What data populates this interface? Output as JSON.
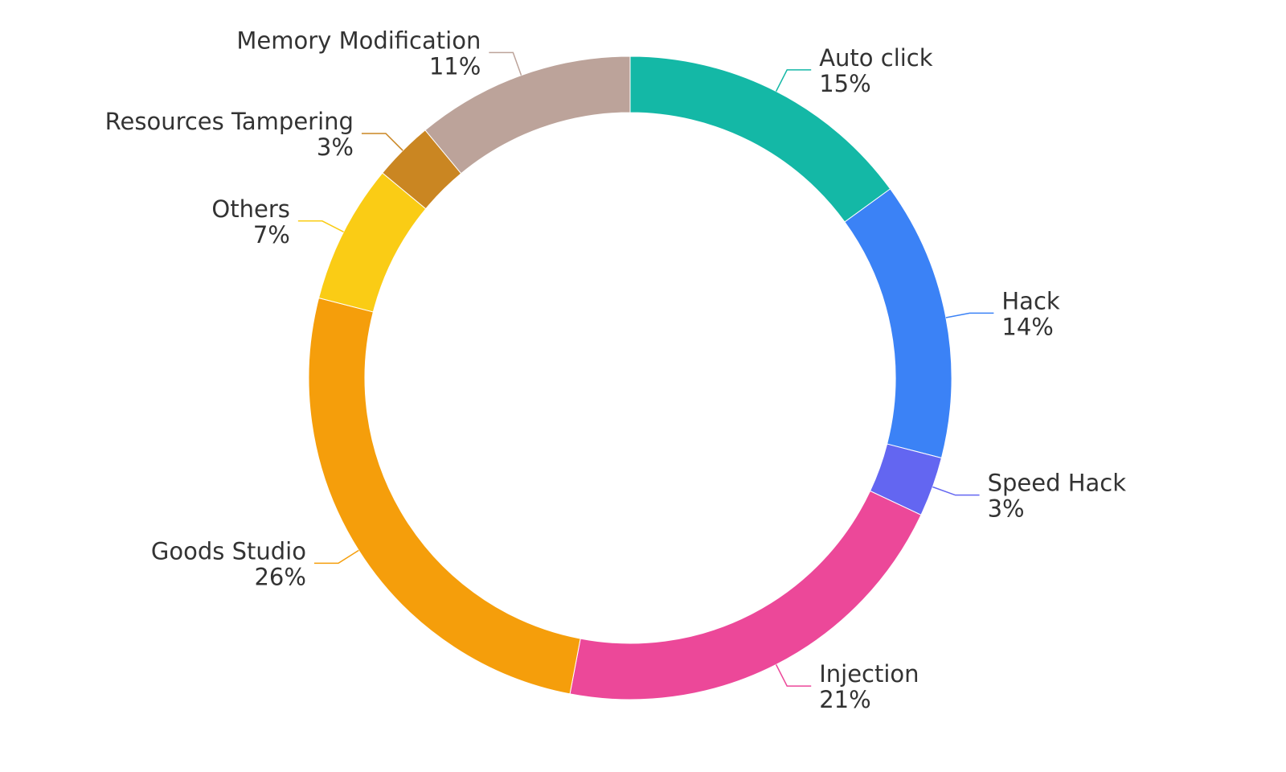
{
  "chart_data": {
    "type": "pie",
    "variant": "donut",
    "start": "top",
    "direction": "clockwise",
    "legend": "none",
    "slices": [
      {
        "name": "Auto click",
        "value": 15,
        "label": "15%",
        "color": "#14b8a6"
      },
      {
        "name": "Hack",
        "value": 14,
        "label": "14%",
        "color": "#3b82f6"
      },
      {
        "name": "Speed Hack",
        "value": 3,
        "label": "3%",
        "color": "#6366f1"
      },
      {
        "name": "Injection",
        "value": 21,
        "label": "21%",
        "color": "#ec4899"
      },
      {
        "name": "Goods Studio",
        "value": 26,
        "label": "26%",
        "color": "#f59e0b"
      },
      {
        "name": "Others",
        "value": 7,
        "label": "7%",
        "color": "#facc15"
      },
      {
        "name": "Resources Tampering",
        "value": 3,
        "label": "3%",
        "color": "#ca8622"
      },
      {
        "name": "Memory Modification",
        "value": 11,
        "label": "11%",
        "color": "#bca39a"
      }
    ]
  }
}
